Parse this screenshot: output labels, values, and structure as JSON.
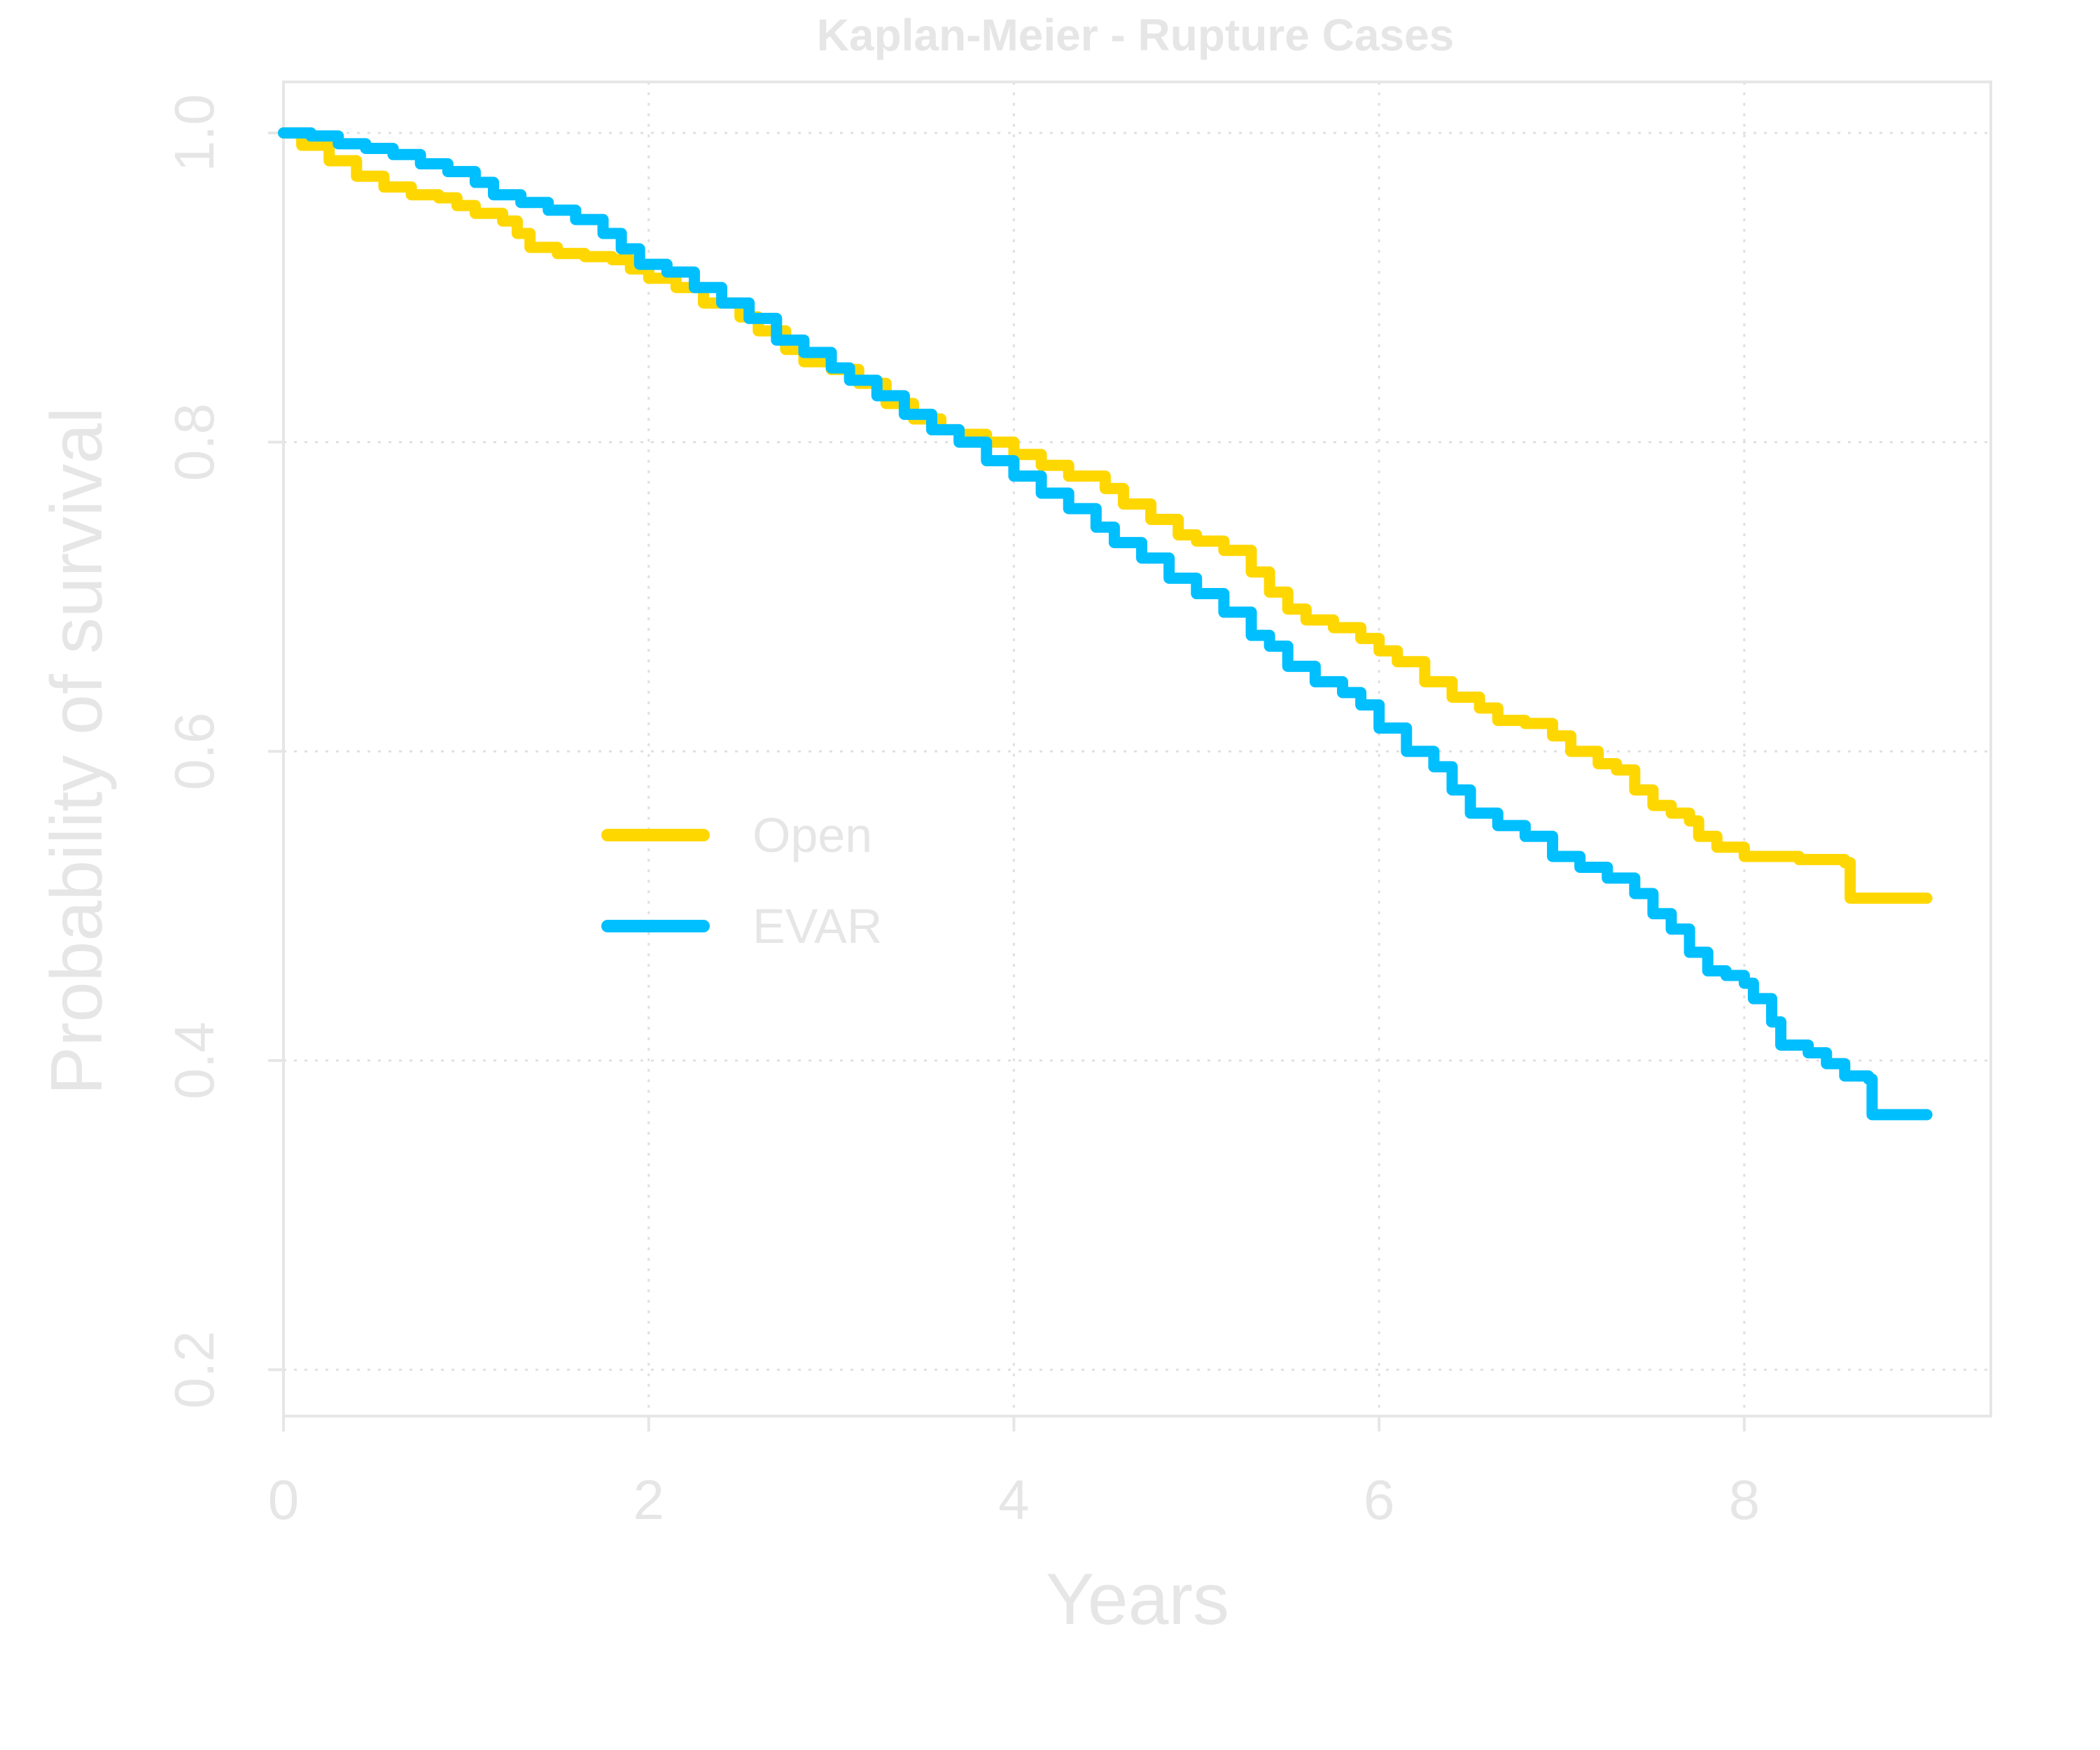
{
  "chart_data": {
    "type": "line",
    "title": "Kaplan-Meier - Rupture Cases",
    "xlabel": "Years",
    "ylabel": "Probability of survival",
    "xlim": [
      0,
      9.35
    ],
    "ylim": [
      0.17,
      1.033
    ],
    "x_ticks": [
      0,
      2,
      4,
      6,
      8
    ],
    "y_ticks": [
      0.2,
      0.4,
      0.6,
      0.8,
      1.0
    ],
    "x_tick_labels": [
      "0",
      "2",
      "4",
      "6",
      "8"
    ],
    "y_tick_labels": [
      "0.2",
      "0.4",
      "0.6",
      "0.8",
      "1.0"
    ],
    "grid": true,
    "legend_position": "center-left",
    "colors": {
      "text": "#e6e6e6",
      "axis": "#e6e6e6",
      "grid": "#e0e0e0"
    },
    "series": [
      {
        "name": "Open",
        "color": "#ffd700",
        "step": true,
        "points": [
          [
            0,
            1.0
          ],
          [
            0.1,
            0.992
          ],
          [
            0.25,
            0.982
          ],
          [
            0.4,
            0.972
          ],
          [
            0.55,
            0.965
          ],
          [
            0.7,
            0.96
          ],
          [
            0.85,
            0.958
          ],
          [
            0.95,
            0.953
          ],
          [
            1.05,
            0.948
          ],
          [
            1.2,
            0.943
          ],
          [
            1.28,
            0.935
          ],
          [
            1.35,
            0.926
          ],
          [
            1.5,
            0.922
          ],
          [
            1.65,
            0.92
          ],
          [
            1.8,
            0.918
          ],
          [
            1.9,
            0.912
          ],
          [
            2.0,
            0.906
          ],
          [
            2.15,
            0.9
          ],
          [
            2.3,
            0.89
          ],
          [
            2.5,
            0.881
          ],
          [
            2.6,
            0.872
          ],
          [
            2.75,
            0.86
          ],
          [
            2.85,
            0.852
          ],
          [
            3.0,
            0.847
          ],
          [
            3.15,
            0.838
          ],
          [
            3.3,
            0.825
          ],
          [
            3.45,
            0.815
          ],
          [
            3.6,
            0.808
          ],
          [
            3.7,
            0.805
          ],
          [
            3.85,
            0.8
          ],
          [
            4.0,
            0.792
          ],
          [
            4.15,
            0.785
          ],
          [
            4.3,
            0.778
          ],
          [
            4.5,
            0.77
          ],
          [
            4.6,
            0.76
          ],
          [
            4.75,
            0.75
          ],
          [
            4.9,
            0.74
          ],
          [
            5.0,
            0.736
          ],
          [
            5.15,
            0.73
          ],
          [
            5.3,
            0.716
          ],
          [
            5.4,
            0.703
          ],
          [
            5.5,
            0.692
          ],
          [
            5.6,
            0.685
          ],
          [
            5.75,
            0.68
          ],
          [
            5.9,
            0.673
          ],
          [
            6.0,
            0.665
          ],
          [
            6.1,
            0.658
          ],
          [
            6.25,
            0.645
          ],
          [
            6.4,
            0.635
          ],
          [
            6.55,
            0.628
          ],
          [
            6.65,
            0.62
          ],
          [
            6.8,
            0.618
          ],
          [
            6.95,
            0.61
          ],
          [
            7.05,
            0.6
          ],
          [
            7.2,
            0.592
          ],
          [
            7.3,
            0.588
          ],
          [
            7.4,
            0.575
          ],
          [
            7.5,
            0.565
          ],
          [
            7.6,
            0.56
          ],
          [
            7.7,
            0.555
          ],
          [
            7.75,
            0.545
          ],
          [
            7.85,
            0.538
          ],
          [
            8.0,
            0.532
          ],
          [
            8.3,
            0.53
          ],
          [
            8.55,
            0.528
          ],
          [
            8.58,
            0.505
          ],
          [
            9.0,
            0.505
          ]
        ]
      },
      {
        "name": "EVAR",
        "color": "#00bfff",
        "step": true,
        "points": [
          [
            0,
            1.0
          ],
          [
            0.15,
            0.998
          ],
          [
            0.3,
            0.993
          ],
          [
            0.45,
            0.99
          ],
          [
            0.6,
            0.986
          ],
          [
            0.75,
            0.98
          ],
          [
            0.9,
            0.975
          ],
          [
            1.05,
            0.968
          ],
          [
            1.15,
            0.96
          ],
          [
            1.3,
            0.955
          ],
          [
            1.45,
            0.95
          ],
          [
            1.6,
            0.944
          ],
          [
            1.75,
            0.935
          ],
          [
            1.85,
            0.925
          ],
          [
            1.95,
            0.915
          ],
          [
            2.1,
            0.91
          ],
          [
            2.25,
            0.9
          ],
          [
            2.4,
            0.89
          ],
          [
            2.55,
            0.88
          ],
          [
            2.7,
            0.866
          ],
          [
            2.85,
            0.858
          ],
          [
            3.0,
            0.848
          ],
          [
            3.1,
            0.84
          ],
          [
            3.25,
            0.83
          ],
          [
            3.4,
            0.818
          ],
          [
            3.55,
            0.808
          ],
          [
            3.7,
            0.8
          ],
          [
            3.85,
            0.788
          ],
          [
            4.0,
            0.778
          ],
          [
            4.15,
            0.767
          ],
          [
            4.3,
            0.757
          ],
          [
            4.45,
            0.745
          ],
          [
            4.55,
            0.735
          ],
          [
            4.7,
            0.725
          ],
          [
            4.85,
            0.712
          ],
          [
            5.0,
            0.702
          ],
          [
            5.15,
            0.69
          ],
          [
            5.3,
            0.675
          ],
          [
            5.4,
            0.668
          ],
          [
            5.5,
            0.655
          ],
          [
            5.65,
            0.645
          ],
          [
            5.8,
            0.638
          ],
          [
            5.9,
            0.63
          ],
          [
            6.0,
            0.615
          ],
          [
            6.15,
            0.6
          ],
          [
            6.3,
            0.59
          ],
          [
            6.4,
            0.575
          ],
          [
            6.5,
            0.56
          ],
          [
            6.65,
            0.552
          ],
          [
            6.8,
            0.545
          ],
          [
            6.95,
            0.532
          ],
          [
            7.1,
            0.525
          ],
          [
            7.25,
            0.518
          ],
          [
            7.4,
            0.508
          ],
          [
            7.5,
            0.495
          ],
          [
            7.6,
            0.485
          ],
          [
            7.7,
            0.47
          ],
          [
            7.8,
            0.458
          ],
          [
            7.9,
            0.455
          ],
          [
            8.0,
            0.45
          ],
          [
            8.05,
            0.44
          ],
          [
            8.15,
            0.425
          ],
          [
            8.2,
            0.41
          ],
          [
            8.35,
            0.405
          ],
          [
            8.45,
            0.398
          ],
          [
            8.55,
            0.39
          ],
          [
            8.68,
            0.388
          ],
          [
            8.7,
            0.365
          ],
          [
            9.0,
            0.365
          ]
        ]
      }
    ]
  }
}
